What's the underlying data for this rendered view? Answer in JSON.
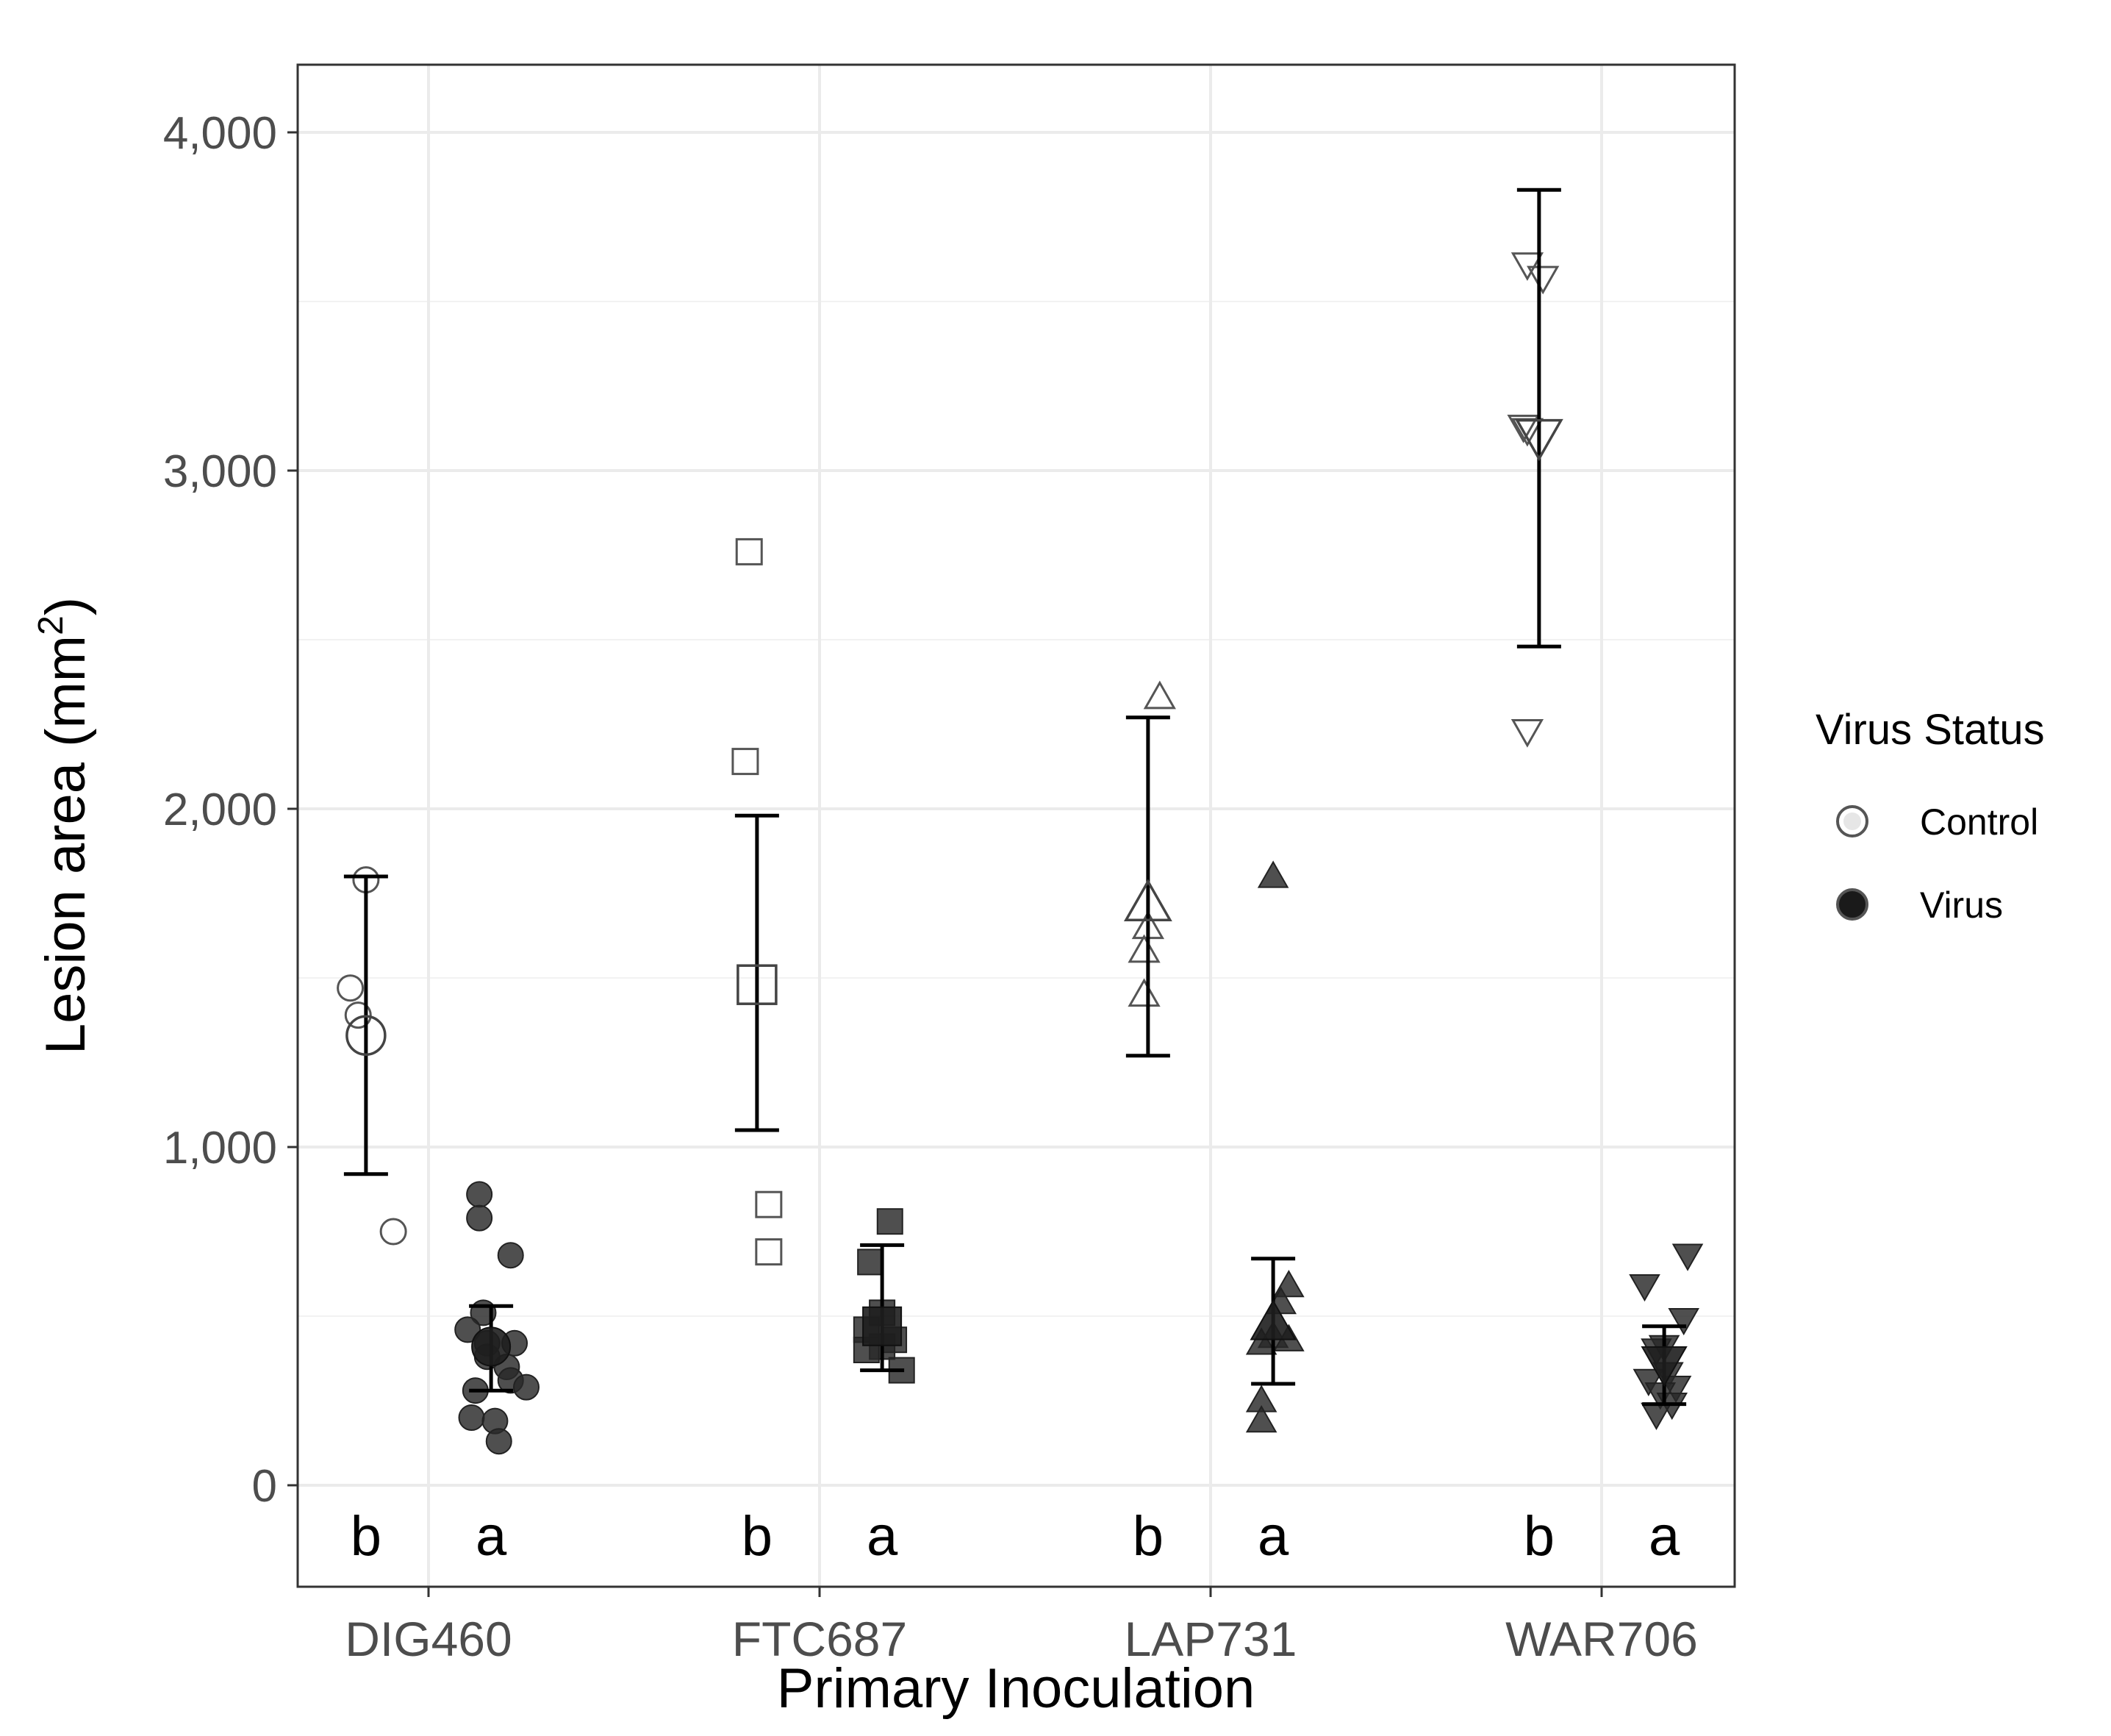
{
  "chart_data": {
    "type": "scatter",
    "title": "",
    "xlabel": "Primary Inoculation",
    "ylabel": {
      "main": "Lesion area (mm",
      "superscript": "2",
      "close": ")"
    },
    "ylim": [
      -300,
      4200
    ],
    "yticks": [
      0,
      1000,
      2000,
      3000,
      4000
    ],
    "ytick_labels": [
      "0",
      "1,000",
      "2,000",
      "3,000",
      "4,000"
    ],
    "grid": true,
    "categories": [
      "DIG460",
      "FTC687",
      "LAP731",
      "WAR706"
    ],
    "legend": {
      "title": "Virus Status",
      "position": "right",
      "entries": [
        {
          "label": "Control",
          "fill": "#ffffff"
        },
        {
          "label": "Virus",
          "fill": "#1a1a1a"
        }
      ]
    },
    "series": [
      {
        "name": "Control",
        "offset": -0.25,
        "color": "#555555",
        "filled": false
      },
      {
        "name": "Virus",
        "offset": 0.25,
        "color": "#333333",
        "filled": true
      }
    ],
    "groups": [
      {
        "category": "DIG460",
        "status": "Control",
        "shape": "circle",
        "mean": 1330,
        "err_low": 920,
        "err_high": 1800,
        "letter": "b",
        "points": [
          [
            0.0,
            1790
          ],
          [
            -0.04,
            1470
          ],
          [
            -0.02,
            1390
          ],
          [
            0.07,
            750
          ]
        ]
      },
      {
        "category": "DIG460",
        "status": "Virus",
        "shape": "circle",
        "mean": 410,
        "err_low": 280,
        "err_high": 530,
        "letter": "a",
        "points": [
          [
            -0.03,
            860
          ],
          [
            -0.03,
            790
          ],
          [
            0.05,
            680
          ],
          [
            -0.02,
            510
          ],
          [
            -0.06,
            460
          ],
          [
            -0.01,
            420
          ],
          [
            0.06,
            420
          ],
          [
            -0.01,
            380
          ],
          [
            0.04,
            350
          ],
          [
            0.05,
            310
          ],
          [
            0.09,
            290
          ],
          [
            -0.04,
            280
          ],
          [
            -0.05,
            200
          ],
          [
            0.01,
            190
          ],
          [
            0.02,
            130
          ]
        ]
      },
      {
        "category": "FTC687",
        "status": "Control",
        "shape": "square",
        "mean": 1480,
        "err_low": 1050,
        "err_high": 1980,
        "letter": "b",
        "points": [
          [
            -0.02,
            2760
          ],
          [
            -0.03,
            2140
          ],
          [
            0.03,
            830
          ],
          [
            0.03,
            690
          ]
        ]
      },
      {
        "category": "FTC687",
        "status": "Virus",
        "shape": "square",
        "mean": 470,
        "err_low": 340,
        "err_high": 710,
        "letter": "a",
        "points": [
          [
            0.02,
            780
          ],
          [
            -0.03,
            660
          ],
          [
            0.0,
            510
          ],
          [
            -0.04,
            460
          ],
          [
            0.03,
            430
          ],
          [
            0.0,
            410
          ],
          [
            -0.04,
            400
          ],
          [
            0.05,
            340
          ]
        ]
      },
      {
        "category": "LAP731",
        "status": "Control",
        "shape": "triangle-up",
        "mean": 1720,
        "err_low": 1270,
        "err_high": 2270,
        "letter": "b",
        "points": [
          [
            0.03,
            2330
          ],
          [
            0.0,
            1650
          ],
          [
            -0.01,
            1580
          ],
          [
            -0.01,
            1450
          ]
        ]
      },
      {
        "category": "LAP731",
        "status": "Virus",
        "shape": "triangle-up",
        "mean": 480,
        "err_low": 300,
        "err_high": 670,
        "letter": "a",
        "points": [
          [
            0.0,
            1800
          ],
          [
            0.04,
            590
          ],
          [
            0.02,
            540
          ],
          [
            0.0,
            440
          ],
          [
            0.04,
            430
          ],
          [
            -0.03,
            420
          ],
          [
            -0.03,
            250
          ],
          [
            -0.03,
            190
          ]
        ]
      },
      {
        "category": "WAR706",
        "status": "Control",
        "shape": "triangle-down",
        "mean": 3100,
        "err_low": 2480,
        "err_high": 3830,
        "letter": "b",
        "points": [
          [
            -0.03,
            3610
          ],
          [
            0.01,
            3570
          ],
          [
            -0.04,
            3130
          ],
          [
            -0.03,
            3120
          ],
          [
            -0.03,
            2230
          ]
        ]
      },
      {
        "category": "WAR706",
        "status": "Virus",
        "shape": "triangle-down",
        "mean": 360,
        "err_low": 240,
        "err_high": 470,
        "letter": "a",
        "points": [
          [
            0.06,
            680
          ],
          [
            -0.05,
            590
          ],
          [
            0.05,
            490
          ],
          [
            0.0,
            410
          ],
          [
            -0.02,
            400
          ],
          [
            0.01,
            330
          ],
          [
            -0.04,
            310
          ],
          [
            0.03,
            290
          ],
          [
            -0.01,
            270
          ],
          [
            0.02,
            240
          ],
          [
            -0.02,
            210
          ]
        ]
      }
    ]
  }
}
